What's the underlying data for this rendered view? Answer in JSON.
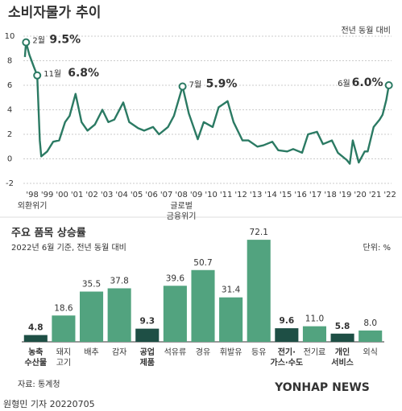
{
  "chart_data": [
    {
      "type": "line",
      "title": "소비자물가 추이",
      "subtitle": "전년 동월 대비",
      "color": "#2b7a63",
      "xlim": [
        1997.9,
        2022.6
      ],
      "ylim": [
        -2,
        10
      ],
      "yticks": [
        -2,
        0,
        2,
        4,
        6,
        8,
        10
      ],
      "grid": true,
      "xticks": [
        {
          "value": 1998.5,
          "label": "'98"
        },
        {
          "value": 1999.5,
          "label": "'99"
        },
        {
          "value": 2000.5,
          "label": "'00"
        },
        {
          "value": 2001.5,
          "label": "'01"
        },
        {
          "value": 2002.5,
          "label": "'02"
        },
        {
          "value": 2003.5,
          "label": "'03"
        },
        {
          "value": 2004.5,
          "label": "'04"
        },
        {
          "value": 2005.5,
          "label": "'05"
        },
        {
          "value": 2006.5,
          "label": "'06"
        },
        {
          "value": 2007.5,
          "label": "'07"
        },
        {
          "value": 2008.5,
          "label": "'08"
        },
        {
          "value": 2009.5,
          "label": "'09"
        },
        {
          "value": 2010.5,
          "label": "'10"
        },
        {
          "value": 2011.5,
          "label": "'11"
        },
        {
          "value": 2012.5,
          "label": "'12"
        },
        {
          "value": 2013.5,
          "label": "'13"
        },
        {
          "value": 2014.5,
          "label": "'14"
        },
        {
          "value": 2015.5,
          "label": "'15"
        },
        {
          "value": 2016.5,
          "label": "'16"
        },
        {
          "value": 2017.5,
          "label": "'17"
        },
        {
          "value": 2018.5,
          "label": "'18"
        },
        {
          "value": 2019.5,
          "label": "'19"
        },
        {
          "value": 2020.5,
          "label": "'20"
        },
        {
          "value": 2021.5,
          "label": "'21"
        },
        {
          "value": 2022.5,
          "label": "'22"
        }
      ],
      "x": [
        1998.0,
        1998.08,
        1998.3,
        1998.6,
        1998.83,
        1999.0,
        1999.1,
        1999.5,
        1999.9,
        2000.3,
        2000.7,
        2001.0,
        2001.4,
        2001.8,
        2002.2,
        2002.7,
        2003.2,
        2003.6,
        2004.0,
        2004.6,
        2005.0,
        2005.6,
        2006.0,
        2006.6,
        2007.0,
        2007.6,
        2008.0,
        2008.58,
        2009.0,
        2009.6,
        2010.0,
        2010.6,
        2011.0,
        2011.6,
        2012.0,
        2012.6,
        2013.0,
        2013.6,
        2014.0,
        2014.6,
        2015.0,
        2015.6,
        2016.0,
        2016.6,
        2017.0,
        2017.6,
        2018.0,
        2018.6,
        2019.0,
        2019.6,
        2019.8,
        2020.0,
        2020.4,
        2020.8,
        2021.0,
        2021.4,
        2021.8,
        2022.0,
        2022.25,
        2022.42
      ],
      "values": [
        8.3,
        9.5,
        8.5,
        7.5,
        6.8,
        1.5,
        0.2,
        0.6,
        1.4,
        1.5,
        3.0,
        3.5,
        5.3,
        3.0,
        2.3,
        2.8,
        4.0,
        3.0,
        3.2,
        4.6,
        3.0,
        2.5,
        2.3,
        2.6,
        2.0,
        2.6,
        3.5,
        5.9,
        3.7,
        1.6,
        3.0,
        2.6,
        4.2,
        4.7,
        3.0,
        1.5,
        1.5,
        1.0,
        1.1,
        1.4,
        0.7,
        0.6,
        0.8,
        0.5,
        2.0,
        2.2,
        1.2,
        1.5,
        0.5,
        -0.1,
        -0.4,
        1.5,
        -0.3,
        0.6,
        0.6,
        2.6,
        3.2,
        3.6,
        4.8,
        6.0
      ],
      "point_labels": [
        null,
        "2월",
        null,
        null,
        "11월",
        null,
        null,
        null,
        null,
        null,
        null,
        null,
        null,
        null,
        null,
        null,
        null,
        null,
        null,
        null,
        null,
        null,
        null,
        null,
        null,
        null,
        null,
        "7월",
        null,
        null,
        null,
        null,
        null,
        null,
        null,
        null,
        null,
        null,
        null,
        null,
        null,
        null,
        null,
        null,
        null,
        null,
        null,
        null,
        null,
        null,
        null,
        null,
        null,
        null,
        null,
        null,
        null,
        null,
        null,
        "6월"
      ],
      "value_labels": [
        null,
        "9.5%",
        null,
        null,
        "6.8%",
        null,
        null,
        null,
        null,
        null,
        null,
        null,
        null,
        null,
        null,
        null,
        null,
        null,
        null,
        null,
        null,
        null,
        null,
        null,
        null,
        null,
        null,
        "5.9%",
        null,
        null,
        null,
        null,
        null,
        null,
        null,
        null,
        null,
        null,
        null,
        null,
        null,
        null,
        null,
        null,
        null,
        null,
        null,
        null,
        null,
        null,
        null,
        null,
        null,
        null,
        null,
        null,
        null,
        null,
        null,
        "6.0%"
      ],
      "x_annotations": [
        {
          "x": 1998.5,
          "lines": [
            "외환위기"
          ]
        },
        {
          "x": 2008.5,
          "lines": [
            "글로벌",
            "금융위기"
          ]
        }
      ]
    },
    {
      "type": "bar",
      "title": "주요 품목 상승률",
      "subtitle": "2022년 6월 기준, 전년 동월 대비",
      "unit": "단위: %",
      "categories": [
        [
          "농축",
          "수산물"
        ],
        [
          "돼지",
          "고기"
        ],
        [
          "배추"
        ],
        [
          "감자"
        ],
        [
          "공업",
          "제품"
        ],
        [
          "석유류"
        ],
        [
          "경유"
        ],
        [
          "휘발유"
        ],
        [
          "등유"
        ],
        [
          "전기·",
          "가스·수도"
        ],
        [
          "전기료"
        ],
        [
          "개인",
          "서비스"
        ],
        [
          "외식"
        ]
      ],
      "values": [
        4.8,
        18.6,
        35.5,
        37.8,
        9.3,
        39.6,
        50.7,
        31.4,
        72.1,
        9.6,
        11.0,
        5.8,
        8.0
      ],
      "value_labels": [
        "4.8",
        "18.6",
        "35.5",
        "37.8",
        "9.3",
        "39.6",
        "50.7",
        "31.4",
        "72.1",
        "9.6",
        "11.0",
        "5.8",
        "8.0"
      ],
      "colors": [
        "#1e4f45",
        "#52a37f",
        "#52a37f",
        "#52a37f",
        "#1e4f45",
        "#52a37f",
        "#52a37f",
        "#52a37f",
        "#52a37f",
        "#1e4f45",
        "#52a37f",
        "#1e4f45",
        "#52a37f"
      ]
    }
  ],
  "footer": {
    "source": "자료: 통계청",
    "byline": "원형민 기자  20220705",
    "watermark": "YONHAP NEWS"
  }
}
